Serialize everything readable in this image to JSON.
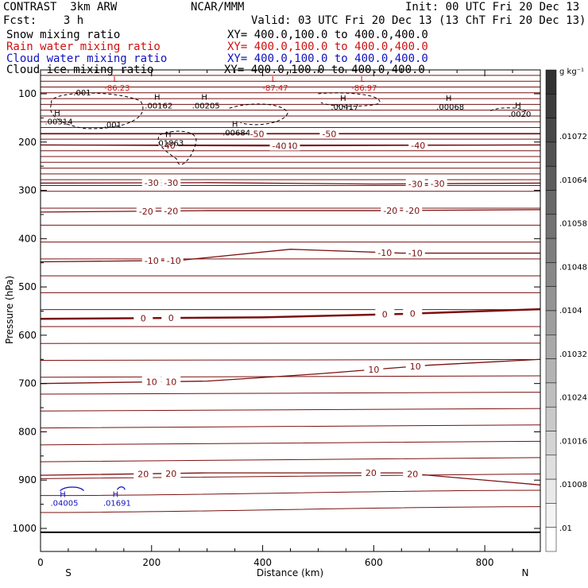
{
  "header": {
    "title": "CONTRAST  3km ARW",
    "org": "NCAR/MMM",
    "init": "Init: 00 UTC Fri 20 Dec 13",
    "fcst": "Fcst:    3 h",
    "valid": "Valid: 03 UTC Fri 20 Dec 13 (13 ChT Fri 20 Dec 13)"
  },
  "fields": [
    {
      "name": "Snow mixing ratio",
      "xy": "XY= 400.0,100.0 to 400.0,400.0",
      "color": "#000000"
    },
    {
      "name": "Rain water mixing ratio",
      "xy": "XY= 400.0,100.0 to 400.0,400.0",
      "color": "#d01010"
    },
    {
      "name": "Cloud water mixing ratio",
      "xy": "XY= 400.0,100.0 to 400.0,400.0",
      "color": "#1010c0"
    },
    {
      "name": "Cloud ice mixing ratio",
      "xy": "XY= 400.0,100.0 to 400.0,400.0",
      "color": "#000000"
    }
  ],
  "chart_data": {
    "type": "contour",
    "xlabel": "Distance (km)",
    "ylabel": "Pressure (hPa)",
    "xlim": [
      0,
      900
    ],
    "ylim": [
      1050,
      45
    ],
    "x_ticks": [
      0,
      200,
      400,
      600,
      800
    ],
    "y_ticks": [
      100,
      200,
      300,
      400,
      500,
      600,
      700,
      800,
      900,
      1000
    ],
    "x_end_labels": {
      "left": "S",
      "right": "N"
    },
    "temperature_isotherms": [
      {
        "label": "-50",
        "points": [
          [
            0,
            183
          ],
          [
            400,
            183
          ],
          [
            900,
            183
          ]
        ],
        "labels_at": [
          [
            390,
            -50
          ],
          [
            520,
            -50
          ]
        ]
      },
      {
        "label": "-40",
        "points": [
          [
            0,
            206
          ],
          [
            400,
            208
          ],
          [
            900,
            206
          ]
        ],
        "labels_at": [
          [
            230,
            -40
          ],
          [
            450,
            -40
          ],
          [
            430,
            -40
          ],
          [
            680,
            -40
          ]
        ]
      },
      {
        "label": "-30",
        "points": [
          [
            0,
            285
          ],
          [
            300,
            284
          ],
          [
            600,
            287
          ],
          [
            900,
            285
          ]
        ],
        "labels_at": [
          [
            200,
            -30
          ],
          [
            235,
            -30
          ],
          [
            675,
            -30
          ],
          [
            715,
            -30
          ]
        ]
      },
      {
        "label": "-20",
        "points": [
          [
            0,
            345
          ],
          [
            300,
            342
          ],
          [
            600,
            342
          ],
          [
            900,
            340
          ]
        ],
        "labels_at": [
          [
            190,
            -20
          ],
          [
            235,
            -20
          ],
          [
            630,
            -20
          ],
          [
            670,
            -20
          ]
        ]
      },
      {
        "label": "-10",
        "points": [
          [
            0,
            448
          ],
          [
            250,
            445
          ],
          [
            450,
            422
          ],
          [
            650,
            430
          ],
          [
            900,
            430
          ]
        ],
        "labels_at": [
          [
            200,
            -10
          ],
          [
            240,
            -10
          ],
          [
            620,
            -10
          ],
          [
            675,
            -10
          ]
        ]
      },
      {
        "label": "0",
        "points": [
          [
            0,
            566
          ],
          [
            400,
            563
          ],
          [
            650,
            556
          ],
          [
            900,
            546
          ]
        ],
        "labels_at": [
          [
            185,
            0
          ],
          [
            235,
            0
          ],
          [
            620,
            0
          ],
          [
            670,
            0
          ]
        ]
      },
      {
        "label": "10",
        "points": [
          [
            0,
            700
          ],
          [
            300,
            695
          ],
          [
            500,
            680
          ],
          [
            700,
            662
          ],
          [
            900,
            650
          ]
        ],
        "labels_at": [
          [
            200,
            10
          ],
          [
            235,
            10
          ],
          [
            600,
            10
          ],
          [
            675,
            10
          ]
        ]
      },
      {
        "label": "20",
        "points": [
          [
            0,
            890
          ],
          [
            300,
            885
          ],
          [
            650,
            885
          ],
          [
            900,
            910
          ]
        ],
        "labels_at": [
          [
            185,
            20
          ],
          [
            235,
            20
          ],
          [
            595,
            20
          ],
          [
            670,
            20
          ]
        ]
      }
    ],
    "contour_labels": [
      "-50",
      "-40",
      "-30",
      "-20",
      "-10",
      "0",
      "10",
      "20"
    ],
    "maxima": [
      {
        "type": "L",
        "x": 135,
        "p": 75,
        "value": "-86.23",
        "color": "#d01010"
      },
      {
        "type": "L",
        "x": 420,
        "p": 75,
        "value": "-87.47",
        "color": "#d01010"
      },
      {
        "type": "L",
        "x": 580,
        "p": 75,
        "value": "-86.97",
        "color": "#d01010"
      },
      {
        "type": "H",
        "x": 30,
        "p": 145,
        "value": ".00314",
        "color": "#000000"
      },
      {
        "type": "H",
        "x": 210,
        "p": 112,
        "value": ".00162",
        "color": "#000000"
      },
      {
        "type": "H",
        "x": 295,
        "p": 112,
        "value": ".00205",
        "color": "#000000"
      },
      {
        "type": "H",
        "x": 350,
        "p": 168,
        "value": ".00684",
        "color": "#000000"
      },
      {
        "type": "H",
        "x": 230,
        "p": 190,
        "value": ".01863",
        "color": "#000000"
      },
      {
        "type": "H",
        "x": 545,
        "p": 115,
        "value": ".00417",
        "color": "#000000"
      },
      {
        "type": "H",
        "x": 735,
        "p": 115,
        "value": ".00068",
        "color": "#000000"
      },
      {
        "type": "H",
        "x": 860,
        "p": 130,
        "value": ".0020",
        "color": "#000000"
      },
      {
        "type": "H",
        "x": 40,
        "p": 935,
        "value": ".04005",
        "color": "#1010c0"
      },
      {
        "type": "H",
        "x": 135,
        "p": 935,
        "value": ".01691",
        "color": "#1010c0"
      }
    ],
    "ice_labels": [
      {
        "text": ".001",
        "x": 75,
        "p": 103
      },
      {
        "text": ".001",
        "x": 130,
        "p": 170
      }
    ],
    "colorbar": {
      "unit": "g kg⁻¹",
      "labels": [
        ".01072",
        ".01064",
        ".01058",
        ".01048",
        ".0104",
        ".01032",
        ".01024",
        ".01016",
        ".01008",
        ".01"
      ]
    }
  }
}
